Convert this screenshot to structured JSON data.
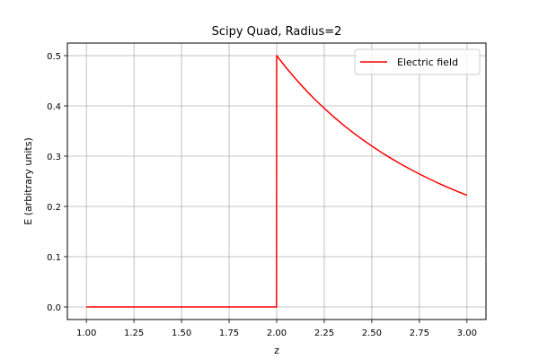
{
  "chart_data": {
    "type": "line",
    "title": "Scipy Quad, Radius=2",
    "xlabel": "z",
    "ylabel": "E (arbitrary units)",
    "xlim": [
      0.9,
      3.1
    ],
    "ylim": [
      -0.025,
      0.525
    ],
    "xticks": [
      1.0,
      1.25,
      1.5,
      1.75,
      2.0,
      2.25,
      2.5,
      2.75,
      3.0
    ],
    "xtick_labels": [
      "1.00",
      "1.25",
      "1.50",
      "1.75",
      "2.00",
      "2.25",
      "2.50",
      "2.75",
      "3.00"
    ],
    "yticks": [
      0.0,
      0.1,
      0.2,
      0.3,
      0.4,
      0.5
    ],
    "ytick_labels": [
      "0.0",
      "0.1",
      "0.2",
      "0.3",
      "0.4",
      "0.5"
    ],
    "grid": true,
    "legend_position": "top-right",
    "series": [
      {
        "name": "Electric field",
        "color": "#ff0000",
        "x": [
          1.0,
          1.999,
          2.0,
          2.05,
          2.1,
          2.15,
          2.2,
          2.25,
          2.3,
          2.35,
          2.4,
          2.45,
          2.5,
          2.55,
          2.6,
          2.65,
          2.7,
          2.75,
          2.8,
          2.85,
          2.9,
          2.95,
          3.0
        ],
        "y": [
          0.0,
          0.0,
          0.5,
          0.4759,
          0.4535,
          0.4327,
          0.4132,
          0.3951,
          0.3781,
          0.3622,
          0.3472,
          0.3332,
          0.32,
          0.3076,
          0.2959,
          0.2848,
          0.2743,
          0.2645,
          0.2551,
          0.2462,
          0.2378,
          0.2298,
          0.2222
        ]
      }
    ]
  }
}
